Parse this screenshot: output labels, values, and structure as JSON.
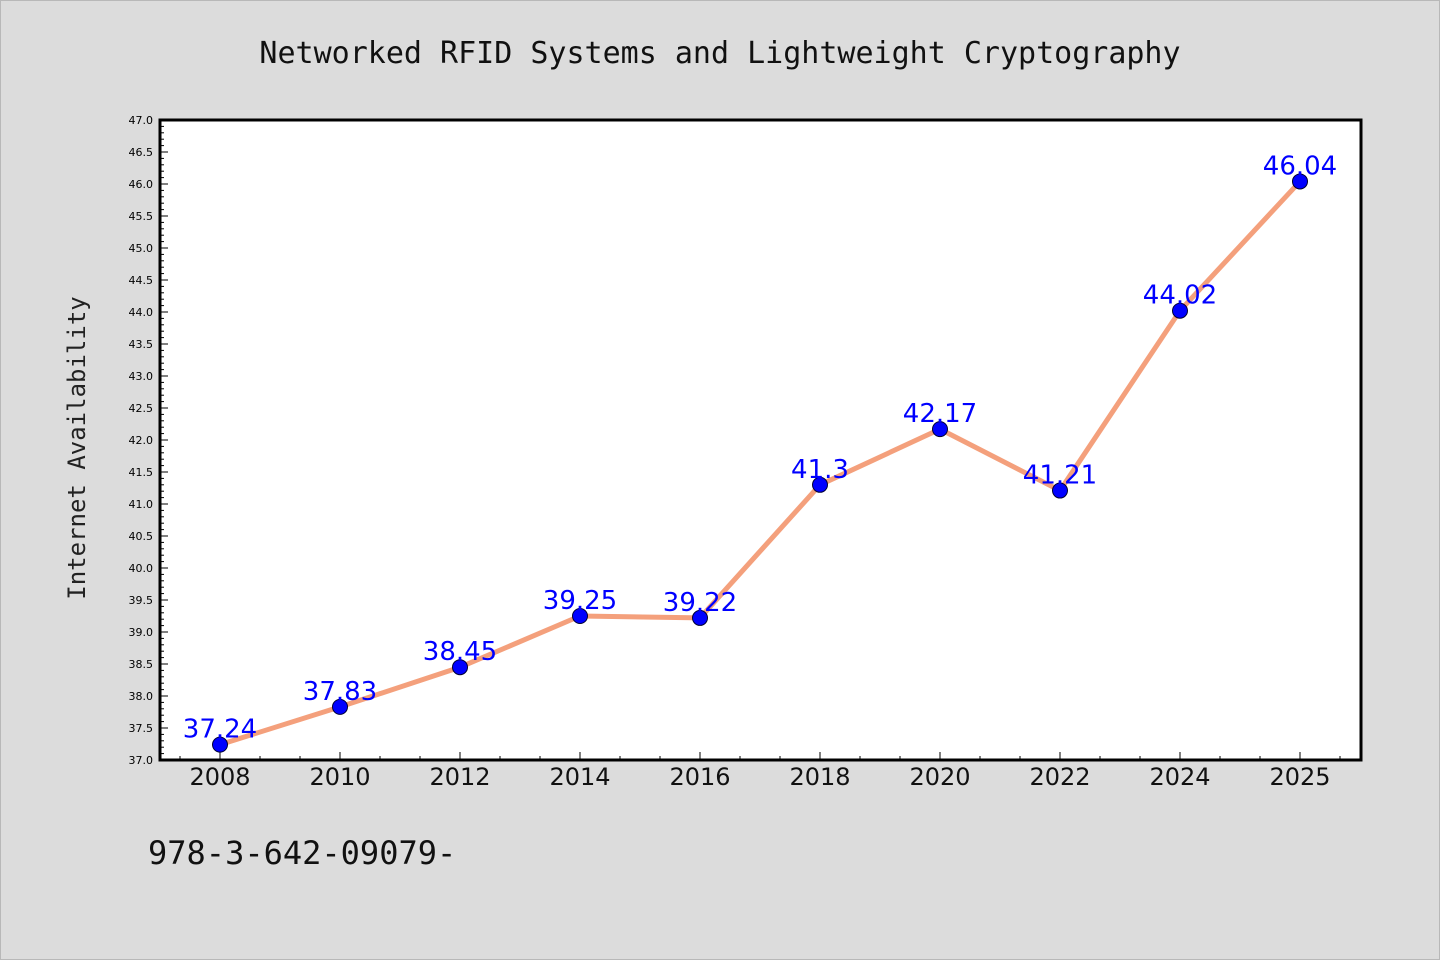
{
  "colors": {
    "background": "#dcdcdc",
    "plot_background": "#ffffff",
    "line": "#f4a07c",
    "marker": "#0000ff",
    "data_label": "#0000ff"
  },
  "footer_text": "978-3-642-09079-",
  "chart_data": {
    "type": "line",
    "title": "Networked RFID Systems and Lightweight Cryptography",
    "xlabel": "",
    "ylabel": "Internet Availability",
    "categories": [
      "2008",
      "2010",
      "2012",
      "2014",
      "2016",
      "2018",
      "2020",
      "2022",
      "2024",
      "2025"
    ],
    "series": [
      {
        "values": [
          37.24,
          37.83,
          38.45,
          39.25,
          39.22,
          41.3,
          42.17,
          41.21,
          44.02,
          46.04
        ],
        "labels": [
          "37.24",
          "37.83",
          "38.45",
          "39.25",
          "39.22",
          "41.3",
          "42.17",
          "41.21",
          "44.02",
          "46.04"
        ]
      }
    ],
    "ylim": [
      37.0,
      47.0
    ],
    "yticks": [
      "37.0",
      "37.5",
      "38.0",
      "38.5",
      "39.0",
      "39.5",
      "40.0",
      "40.5",
      "41.0",
      "41.5",
      "42.0",
      "42.5",
      "43.0",
      "43.5",
      "44.0",
      "44.5",
      "45.0",
      "45.5",
      "46.0",
      "46.5",
      "47.0"
    ],
    "grid": false,
    "legend": "none",
    "markers": "circle"
  }
}
